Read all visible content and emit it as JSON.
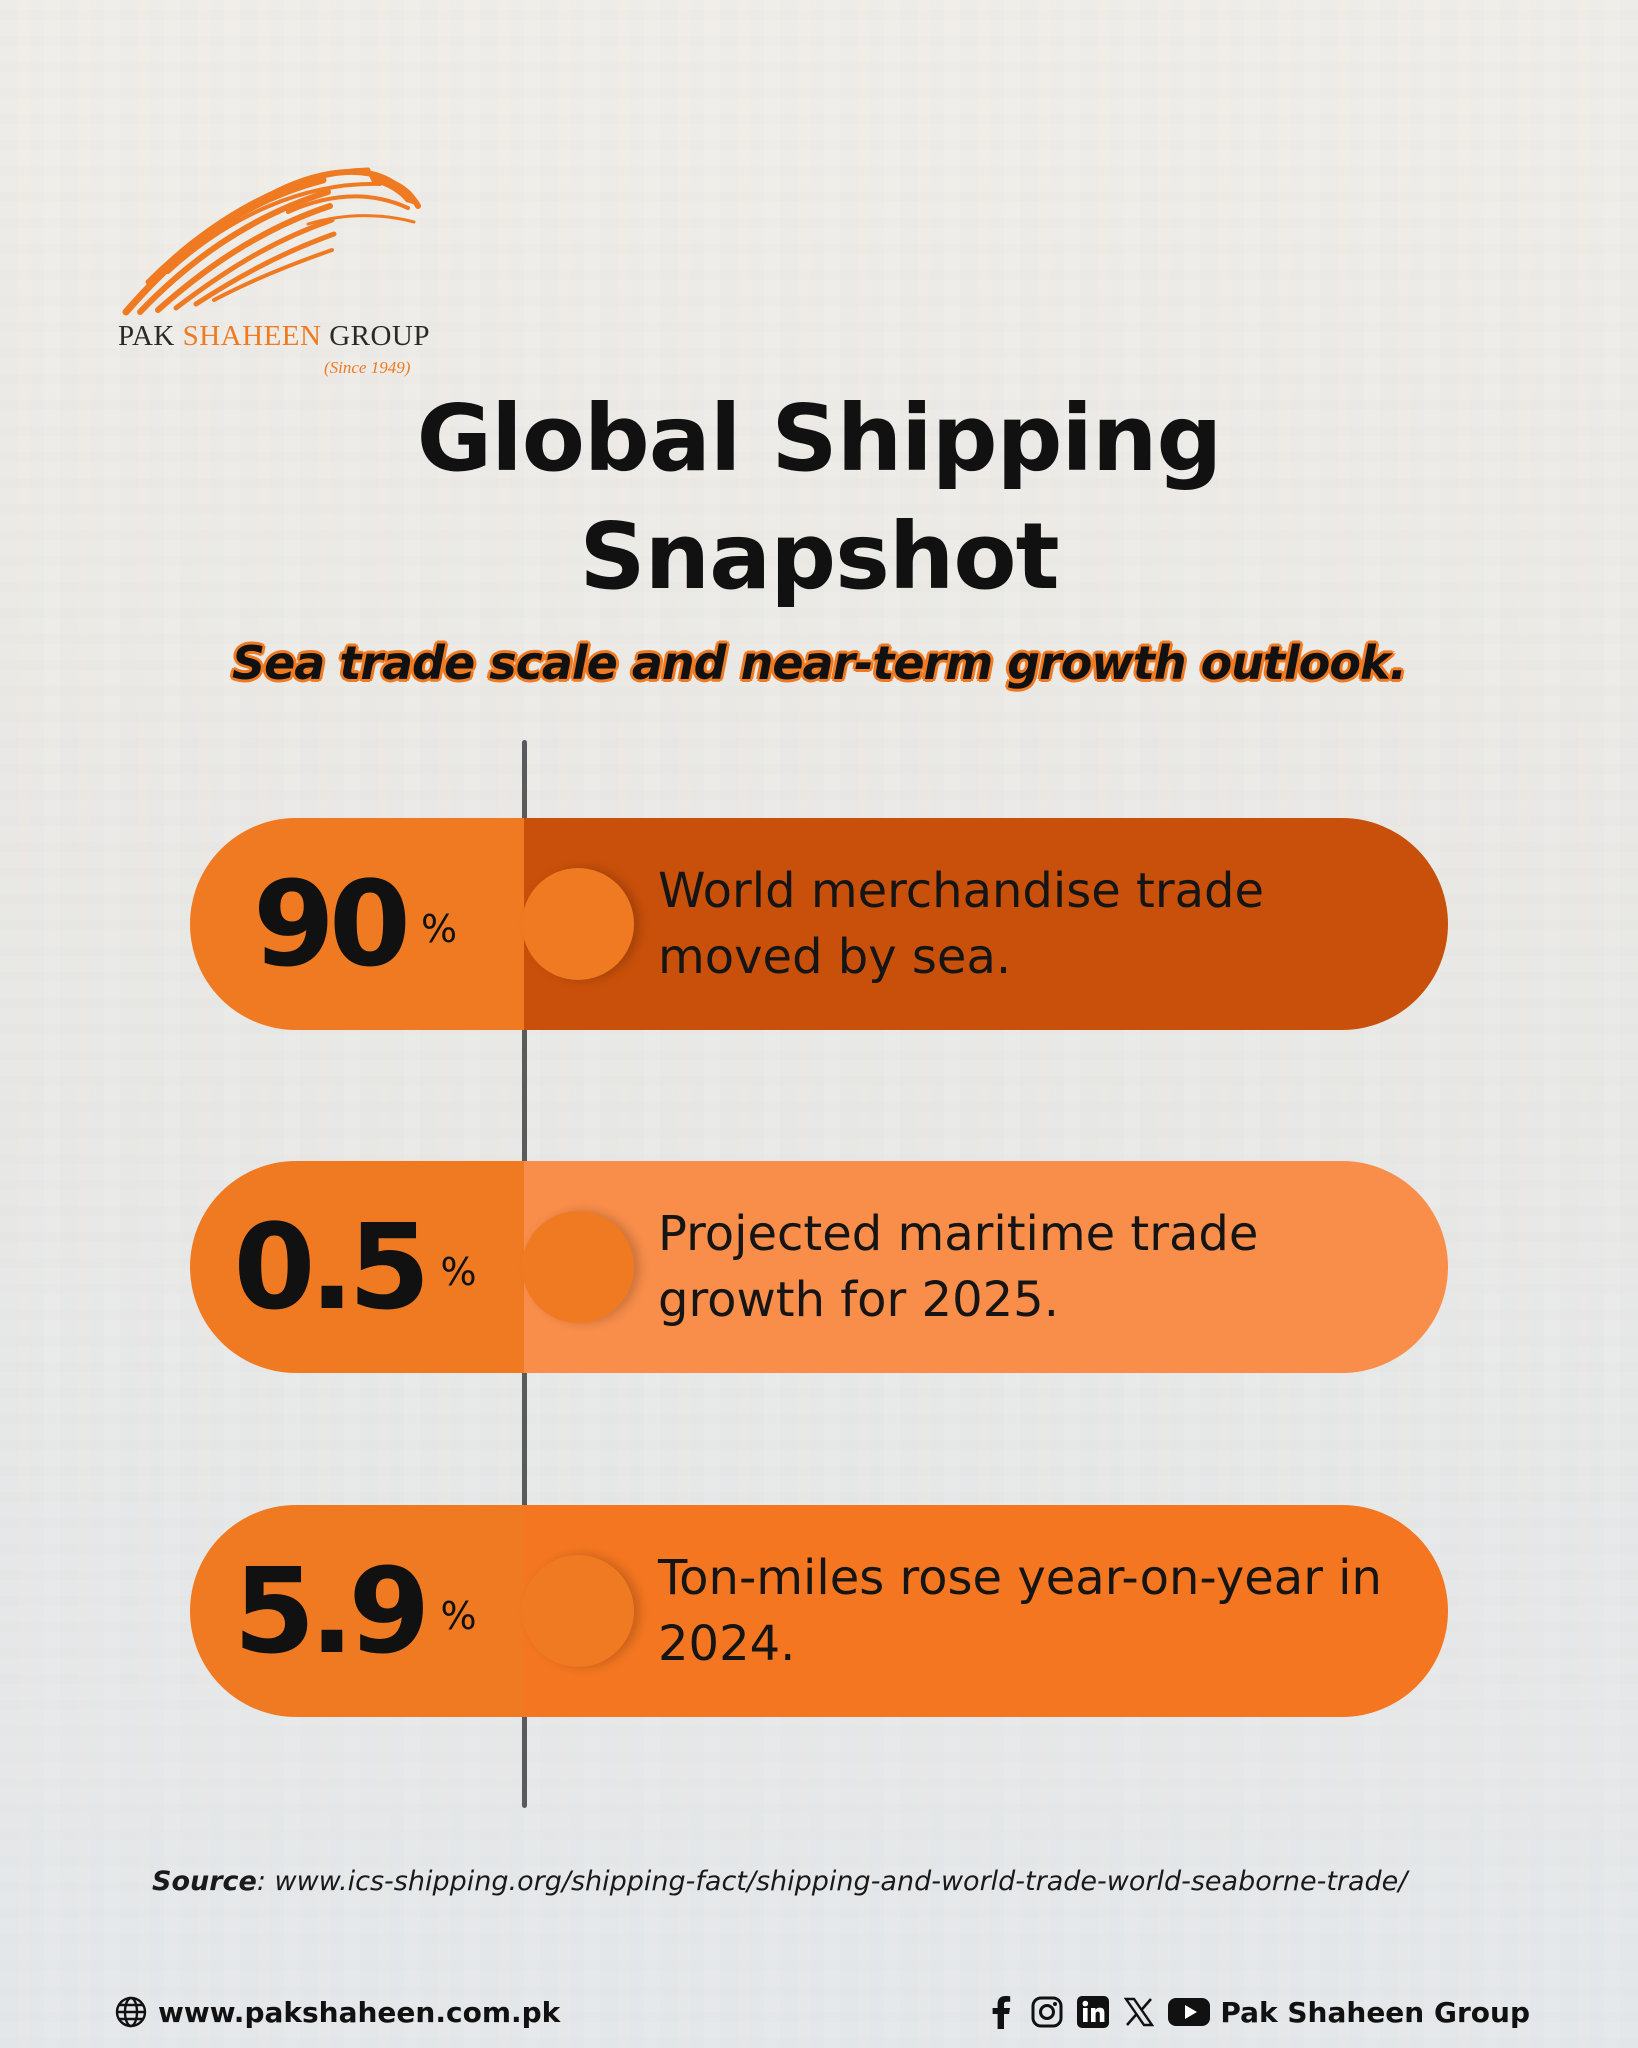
{
  "brand": {
    "name_part1": "PAK ",
    "name_part2": "SHAHEEN",
    "name_part3": " GROUP",
    "since": "(Since 1949)",
    "accent_color": "#f07a22"
  },
  "title_line1": "Global Shipping",
  "title_line2": "Snapshot",
  "subtitle": "Sea trade scale and near-term growth outlook.",
  "stats": [
    {
      "value": "90",
      "unit": "%",
      "description": "World merchandise trade moved by sea.",
      "color": "#c9500a"
    },
    {
      "value": "0.5",
      "unit": "%",
      "description": "Projected maritime trade growth for 2025.",
      "color": "#f98d4a"
    },
    {
      "value": "5.9",
      "unit": "%",
      "description": "Ton-miles rose year-on-year in 2024.",
      "color": "#f47620"
    }
  ],
  "source": {
    "label": "Source",
    "text": ": www.ics-shipping.org/shipping-fact/shipping-and-world-trade-world-seaborne-trade/"
  },
  "footer": {
    "website": "www.pakshaheen.com.pk",
    "social_name": "Pak Shaheen Group",
    "icons": [
      "globe-icon",
      "facebook-icon",
      "instagram-icon",
      "linkedin-icon",
      "x-icon",
      "youtube-icon"
    ]
  }
}
